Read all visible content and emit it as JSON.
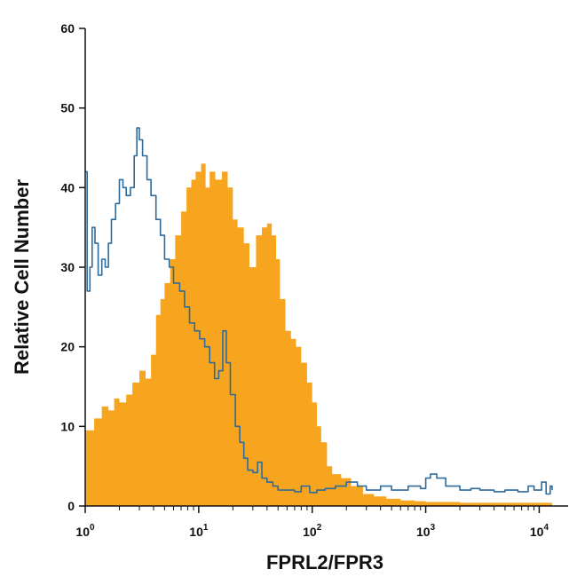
{
  "chart_data": {
    "type": "area",
    "title": "",
    "xlabel": "FPRL2/FPR3",
    "ylabel": "Relative Cell Number",
    "x_scale": "log10",
    "xlim": [
      1,
      13000
    ],
    "ylim": [
      0,
      60
    ],
    "x_ticks": [
      {
        "value": 1,
        "base": "10",
        "exp": "0"
      },
      {
        "value": 10,
        "base": "10",
        "exp": "1"
      },
      {
        "value": 100,
        "base": "10",
        "exp": "2"
      },
      {
        "value": 1000,
        "base": "10",
        "exp": "3"
      },
      {
        "value": 10000,
        "base": "10",
        "exp": "4"
      }
    ],
    "y_ticks": [
      "0",
      "10",
      "20",
      "30",
      "40",
      "50",
      "60"
    ],
    "grid": false,
    "series": [
      {
        "style": "filled",
        "color": "#F7A51E",
        "points": [
          [
            1.0,
            9.5
          ],
          [
            1.2,
            11
          ],
          [
            1.4,
            12.5
          ],
          [
            1.6,
            12
          ],
          [
            1.8,
            13.5
          ],
          [
            2.0,
            13
          ],
          [
            2.3,
            14
          ],
          [
            2.6,
            15.5
          ],
          [
            3.0,
            17
          ],
          [
            3.4,
            16
          ],
          [
            3.8,
            19
          ],
          [
            4.2,
            24
          ],
          [
            4.6,
            26
          ],
          [
            5.0,
            28
          ],
          [
            5.6,
            31
          ],
          [
            6.2,
            34
          ],
          [
            7.0,
            37
          ],
          [
            7.8,
            40
          ],
          [
            8.6,
            41
          ],
          [
            9.4,
            42
          ],
          [
            10.5,
            43
          ],
          [
            11.5,
            40
          ],
          [
            12.5,
            42
          ],
          [
            14,
            41
          ],
          [
            16,
            42
          ],
          [
            18,
            40
          ],
          [
            20,
            36
          ],
          [
            22,
            35
          ],
          [
            25,
            33
          ],
          [
            28,
            30
          ],
          [
            32,
            34
          ],
          [
            36,
            35
          ],
          [
            40,
            35.5
          ],
          [
            44,
            34
          ],
          [
            48,
            31
          ],
          [
            52,
            26
          ],
          [
            58,
            22
          ],
          [
            65,
            21
          ],
          [
            72,
            20
          ],
          [
            80,
            18
          ],
          [
            90,
            15.5
          ],
          [
            100,
            13
          ],
          [
            110,
            10
          ],
          [
            120,
            8
          ],
          [
            135,
            5
          ],
          [
            150,
            4
          ],
          [
            180,
            3.5
          ],
          [
            220,
            2.5
          ],
          [
            280,
            1.5
          ],
          [
            350,
            1.2
          ],
          [
            450,
            0.9
          ],
          [
            600,
            0.7
          ],
          [
            800,
            0.6
          ],
          [
            1000,
            0.5
          ],
          [
            1500,
            0.5
          ],
          [
            2000,
            0.4
          ],
          [
            3000,
            0.4
          ],
          [
            5000,
            0.4
          ],
          [
            8000,
            0.4
          ],
          [
            13000,
            0.4
          ]
        ]
      },
      {
        "style": "outline",
        "color": "#2E6A9A",
        "points": [
          [
            1.0,
            42
          ],
          [
            1.04,
            27
          ],
          [
            1.1,
            30
          ],
          [
            1.15,
            35
          ],
          [
            1.22,
            33
          ],
          [
            1.3,
            29
          ],
          [
            1.4,
            31
          ],
          [
            1.5,
            30
          ],
          [
            1.6,
            33
          ],
          [
            1.7,
            36
          ],
          [
            1.85,
            38
          ],
          [
            2.0,
            41
          ],
          [
            2.15,
            40
          ],
          [
            2.3,
            39
          ],
          [
            2.5,
            40
          ],
          [
            2.7,
            44
          ],
          [
            2.85,
            47.5
          ],
          [
            3.0,
            46
          ],
          [
            3.2,
            44
          ],
          [
            3.5,
            41
          ],
          [
            3.8,
            39
          ],
          [
            4.2,
            36
          ],
          [
            4.6,
            34
          ],
          [
            5.0,
            31
          ],
          [
            5.5,
            30
          ],
          [
            6.0,
            28
          ],
          [
            6.8,
            27
          ],
          [
            7.5,
            25
          ],
          [
            8.3,
            23
          ],
          [
            9.2,
            22
          ],
          [
            10.2,
            21
          ],
          [
            11.3,
            20
          ],
          [
            12.5,
            18
          ],
          [
            13.8,
            16
          ],
          [
            15.0,
            17
          ],
          [
            16.3,
            22
          ],
          [
            17.5,
            18
          ],
          [
            19,
            14
          ],
          [
            21,
            10
          ],
          [
            23,
            8
          ],
          [
            25,
            6
          ],
          [
            27,
            4.5
          ],
          [
            30,
            4.2
          ],
          [
            33,
            5.5
          ],
          [
            36,
            3.5
          ],
          [
            40,
            3
          ],
          [
            45,
            2.5
          ],
          [
            50,
            2
          ],
          [
            60,
            2
          ],
          [
            70,
            1.8
          ],
          [
            80,
            2.5
          ],
          [
            95,
            1.7
          ],
          [
            110,
            2
          ],
          [
            130,
            2.2
          ],
          [
            160,
            2.5
          ],
          [
            200,
            3
          ],
          [
            250,
            2.5
          ],
          [
            300,
            2
          ],
          [
            400,
            2.5
          ],
          [
            500,
            2
          ],
          [
            700,
            2.5
          ],
          [
            900,
            2.2
          ],
          [
            1000,
            3.5
          ],
          [
            1100,
            4
          ],
          [
            1250,
            3.5
          ],
          [
            1500,
            2.5
          ],
          [
            2000,
            2
          ],
          [
            2500,
            2.2
          ],
          [
            3000,
            2
          ],
          [
            4000,
            1.8
          ],
          [
            5000,
            2
          ],
          [
            6500,
            1.8
          ],
          [
            8000,
            2.5
          ],
          [
            9000,
            2
          ],
          [
            10500,
            3
          ],
          [
            11500,
            1.5
          ],
          [
            12500,
            2.5
          ],
          [
            13000,
            2
          ]
        ]
      }
    ]
  }
}
